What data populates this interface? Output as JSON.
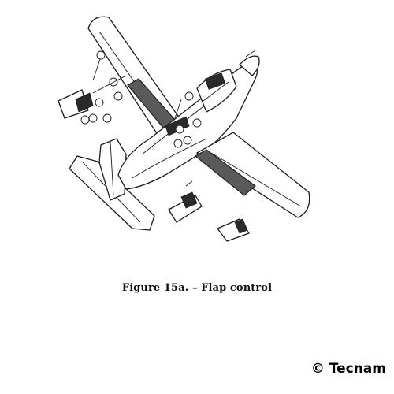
{
  "figure": {
    "caption": "Figure 15a. – Flap control"
  },
  "copyright": {
    "text": "© Tecnam"
  }
}
